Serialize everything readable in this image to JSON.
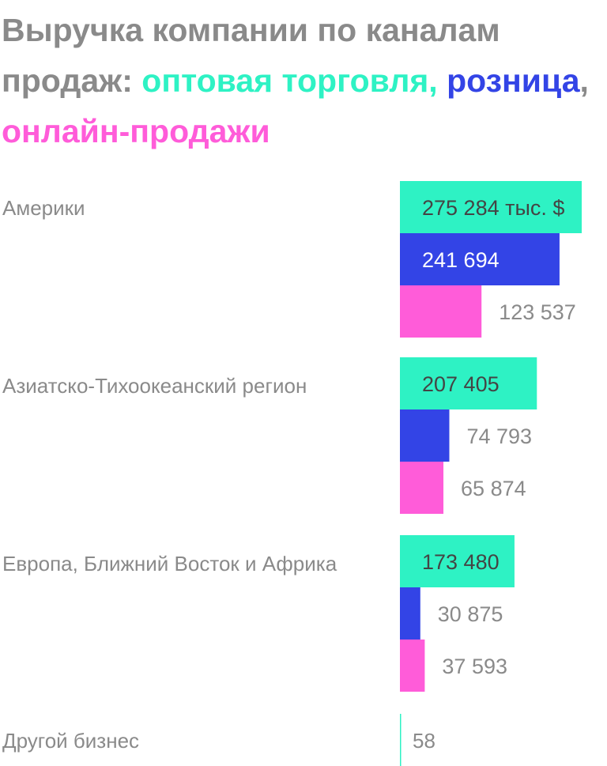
{
  "title": {
    "prefix": "Выручка компании по каналам продаж:",
    "legend": [
      {
        "label": "оптовая торговля",
        "color": "#2ef2c4",
        "suffix": ","
      },
      {
        "label": "розница",
        "color": "#3344e6",
        "suffix": ","
      },
      {
        "label": "онлайн-продажи",
        "color": "#ff5cd9",
        "suffix": ""
      }
    ]
  },
  "chart_data": {
    "type": "bar",
    "orientation": "horizontal",
    "unit": "тыс. $",
    "categories": [
      "Америки",
      "Азиатско-Тихоокеанский регион",
      "Европа, Ближний Восток и Африка",
      "Другой бизнес"
    ],
    "series": [
      {
        "name": "оптовая торговля",
        "color": "#2ef2c4",
        "values": [
          275284,
          207405,
          173480,
          null
        ],
        "labels": [
          "275 284 тыс. $",
          "207 405",
          "173 480",
          ""
        ]
      },
      {
        "name": "розница",
        "color": "#3344e6",
        "values": [
          241694,
          74793,
          30875,
          null
        ],
        "labels": [
          "241 694",
          "74 793",
          "30 875",
          ""
        ]
      },
      {
        "name": "онлайн-продажи",
        "color": "#ff5cd9",
        "values": [
          123537,
          65874,
          37593,
          null
        ],
        "labels": [
          "123 537",
          "65 874",
          "37 593",
          ""
        ]
      }
    ],
    "other": {
      "value": 58,
      "label": "58",
      "color": "#2ef2c4"
    },
    "xlim": [
      0,
      275284
    ],
    "grid": false,
    "legend_placement": "title"
  }
}
